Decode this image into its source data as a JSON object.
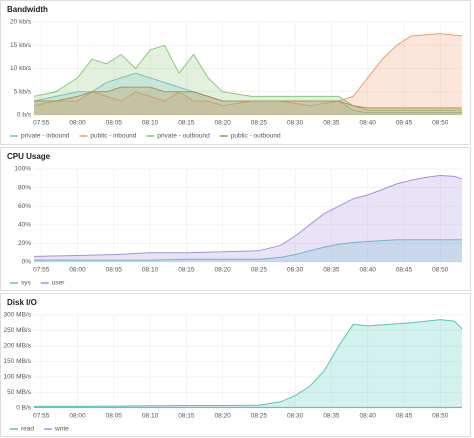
{
  "chart_data": [
    {
      "type": "line",
      "title": "Bandwidth",
      "area": true,
      "grid": true,
      "legend": "bottom",
      "x": [
        "07:54",
        "07:57",
        "08:00",
        "08:02",
        "08:04",
        "08:06",
        "08:08",
        "08:10",
        "08:12",
        "08:14",
        "08:16",
        "08:18",
        "08:20",
        "08:24",
        "08:28",
        "08:32",
        "08:36",
        "08:38",
        "08:40",
        "08:42",
        "08:44",
        "08:46",
        "08:50",
        "08:53"
      ],
      "xlim": [
        "07:54",
        "08:53"
      ],
      "xticks": [
        "07:55",
        "08:00",
        "08:05",
        "08:10",
        "08:15",
        "08:20",
        "08:25",
        "08:30",
        "08:35",
        "08:40",
        "08:45",
        "08:50"
      ],
      "ylim": [
        0,
        20
      ],
      "yticks": [
        {
          "value": 0,
          "label": "0 b/s"
        },
        {
          "value": 5,
          "label": "5 kb/s"
        },
        {
          "value": 10,
          "label": "10 kb/s"
        },
        {
          "value": 15,
          "label": "15 kb/s"
        },
        {
          "value": 20,
          "label": "20 kb/s"
        }
      ],
      "series": [
        {
          "name": "private - inbound",
          "color": "#70c1d9",
          "values": [
            3,
            4,
            5,
            5,
            7,
            8,
            9,
            8,
            7,
            6,
            5,
            4,
            3,
            3,
            3,
            3,
            3,
            1,
            0.5,
            0.5,
            0.5,
            0.5,
            0.5,
            0.5
          ]
        },
        {
          "name": "public - inbound",
          "color": "#f29b6b",
          "values": [
            2,
            3,
            3,
            5,
            4,
            3,
            5,
            4,
            3,
            5,
            3,
            3,
            2,
            3,
            3,
            2,
            3,
            4,
            8,
            12,
            15,
            17,
            17.5,
            17
          ]
        },
        {
          "name": "private - outbound",
          "color": "#8cc77a",
          "values": [
            4,
            5,
            8,
            12,
            11,
            13,
            10,
            14,
            15,
            9,
            13,
            8,
            5,
            4,
            4,
            4,
            4,
            2,
            1,
            1,
            1,
            1,
            1,
            1
          ]
        },
        {
          "name": "public - outbound",
          "color": "#b58d4e",
          "values": [
            3,
            3,
            4,
            5,
            5,
            6,
            6,
            6,
            5,
            5,
            5,
            4,
            3,
            3,
            3,
            3,
            3,
            2,
            1.5,
            1.5,
            1.5,
            1.5,
            1.5,
            1.5
          ]
        }
      ]
    },
    {
      "type": "line",
      "title": "CPU Usage",
      "area": true,
      "grid": true,
      "legend": "bottom",
      "x": [
        "07:54",
        "08:00",
        "08:05",
        "08:10",
        "08:15",
        "08:20",
        "08:25",
        "08:28",
        "08:30",
        "08:32",
        "08:34",
        "08:36",
        "08:38",
        "08:40",
        "08:42",
        "08:44",
        "08:46",
        "08:48",
        "08:50",
        "08:52",
        "08:53"
      ],
      "xlim": [
        "07:54",
        "08:53"
      ],
      "xticks": [
        "07:55",
        "08:00",
        "08:05",
        "08:10",
        "08:15",
        "08:20",
        "08:25",
        "08:30",
        "08:35",
        "08:40",
        "08:45",
        "08:50"
      ],
      "ylim": [
        0,
        100
      ],
      "yticks": [
        {
          "value": 0,
          "label": "0%"
        },
        {
          "value": 20,
          "label": "20%"
        },
        {
          "value": 40,
          "label": "40%"
        },
        {
          "value": 60,
          "label": "60%"
        },
        {
          "value": 80,
          "label": "80%"
        },
        {
          "value": 100,
          "label": "100%"
        }
      ],
      "series": [
        {
          "name": "sys",
          "color": "#5cc4c4",
          "values": [
            2,
            2,
            2,
            2,
            3,
            3,
            3,
            5,
            8,
            12,
            16,
            19,
            21,
            22,
            23,
            24,
            24,
            24,
            24,
            24,
            24
          ]
        },
        {
          "name": "user",
          "color": "#a98fe0",
          "values": [
            6,
            7,
            8,
            10,
            10,
            11,
            12,
            18,
            28,
            40,
            52,
            60,
            68,
            72,
            78,
            84,
            88,
            91,
            93,
            92,
            89
          ]
        }
      ]
    },
    {
      "type": "line",
      "title": "Disk I/O",
      "area": true,
      "grid": true,
      "legend": "bottom",
      "x": [
        "07:54",
        "08:00",
        "08:05",
        "08:10",
        "08:15",
        "08:20",
        "08:25",
        "08:28",
        "08:30",
        "08:32",
        "08:34",
        "08:36",
        "08:38",
        "08:40",
        "08:42",
        "08:44",
        "08:46",
        "08:48",
        "08:50",
        "08:52",
        "08:53"
      ],
      "xlim": [
        "07:54",
        "08:53"
      ],
      "xticks": [
        "07:55",
        "08:00",
        "08:05",
        "08:10",
        "08:15",
        "08:20",
        "08:25",
        "08:30",
        "08:35",
        "08:40",
        "08:45",
        "08:50"
      ],
      "ylim": [
        0,
        300
      ],
      "yticks": [
        {
          "value": 0,
          "label": "0 B/s"
        },
        {
          "value": 50,
          "label": "50 MB/s"
        },
        {
          "value": 100,
          "label": "100 MB/s"
        },
        {
          "value": 150,
          "label": "150 MB/s"
        },
        {
          "value": 200,
          "label": "200 MB/s"
        },
        {
          "value": 250,
          "label": "250 MB/s"
        },
        {
          "value": 300,
          "label": "300 MB/s"
        }
      ],
      "series": [
        {
          "name": "read",
          "color": "#4fc9b8",
          "values": [
            5,
            5,
            6,
            7,
            8,
            8,
            9,
            20,
            40,
            70,
            120,
            200,
            270,
            265,
            268,
            272,
            275,
            280,
            285,
            280,
            255
          ]
        },
        {
          "name": "write",
          "color": "#a98fe0",
          "values": [
            2,
            2,
            2,
            2,
            2,
            2,
            2,
            2,
            2,
            2,
            2,
            2,
            2,
            2,
            2,
            2,
            2,
            2,
            2,
            2,
            2
          ]
        }
      ]
    }
  ]
}
